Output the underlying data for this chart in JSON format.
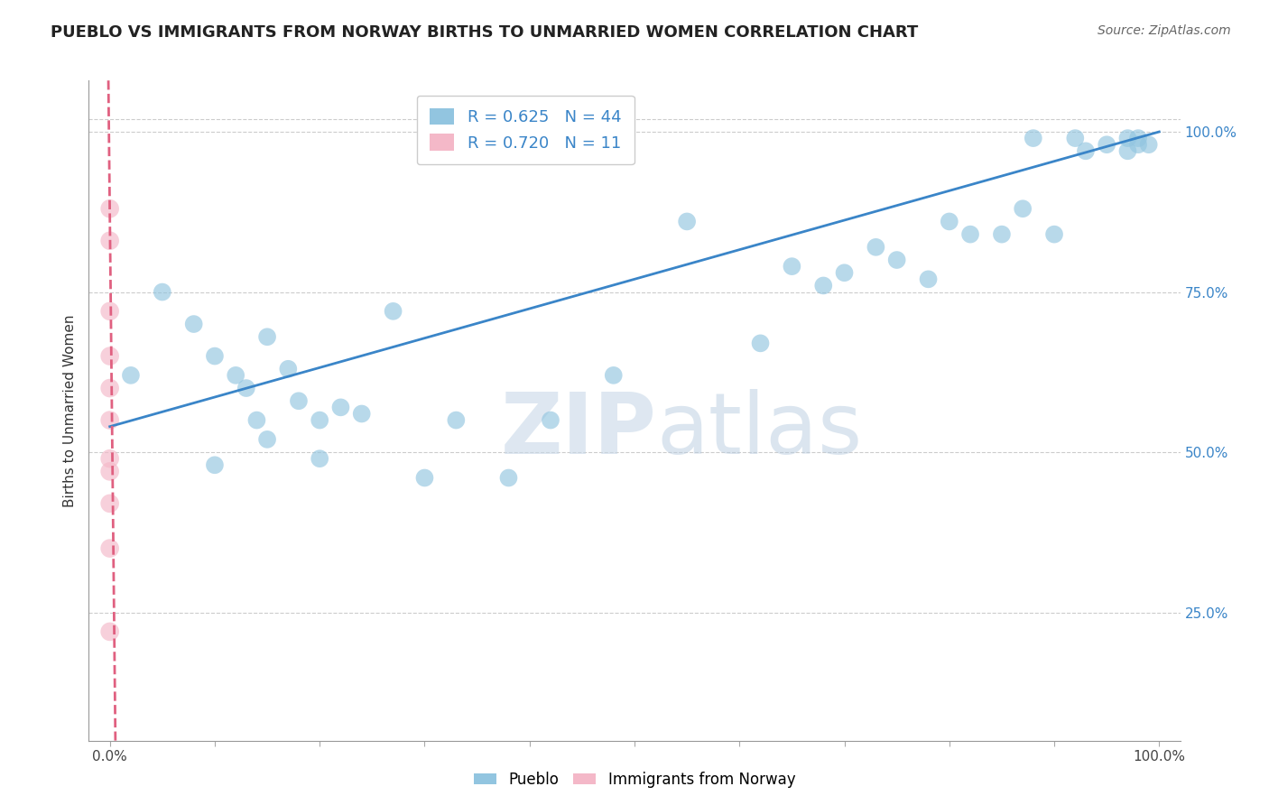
{
  "title": "PUEBLO VS IMMIGRANTS FROM NORWAY BIRTHS TO UNMARRIED WOMEN CORRELATION CHART",
  "source": "Source: ZipAtlas.com",
  "ylabel": "Births to Unmarried Women",
  "xlim": [
    -0.02,
    1.02
  ],
  "ylim": [
    0.05,
    1.08
  ],
  "yticks": [
    0.25,
    0.5,
    0.75,
    1.0
  ],
  "ytick_labels": [
    "25.0%",
    "50.0%",
    "75.0%",
    "100.0%"
  ],
  "pueblo_R": 0.625,
  "pueblo_N": 44,
  "norway_R": 0.72,
  "norway_N": 11,
  "pueblo_color": "#92c5e0",
  "norway_color": "#f4b8c8",
  "trendline_blue": "#3a85c8",
  "trendline_pink": "#e06080",
  "legend_label_blue": "Pueblo",
  "legend_label_pink": "Immigrants from Norway",
  "watermark_zip": "ZIP",
  "watermark_atlas": "atlas",
  "blue_x": [
    0.02,
    0.05,
    0.08,
    0.1,
    0.12,
    0.13,
    0.14,
    0.15,
    0.17,
    0.18,
    0.2,
    0.22,
    0.24,
    0.27,
    0.33,
    0.38,
    0.42,
    0.48,
    0.55,
    0.62,
    0.65,
    0.68,
    0.7,
    0.73,
    0.75,
    0.78,
    0.8,
    0.82,
    0.85,
    0.87,
    0.88,
    0.9,
    0.92,
    0.93,
    0.95,
    0.97,
    0.97,
    0.98,
    0.98,
    0.99,
    0.1,
    0.15,
    0.2,
    0.3
  ],
  "blue_y": [
    0.62,
    0.75,
    0.7,
    0.65,
    0.62,
    0.6,
    0.55,
    0.68,
    0.63,
    0.58,
    0.55,
    0.57,
    0.56,
    0.72,
    0.55,
    0.46,
    0.55,
    0.62,
    0.86,
    0.67,
    0.79,
    0.76,
    0.78,
    0.82,
    0.8,
    0.77,
    0.86,
    0.84,
    0.84,
    0.88,
    0.99,
    0.84,
    0.99,
    0.97,
    0.98,
    0.97,
    0.99,
    0.99,
    0.98,
    0.98,
    0.48,
    0.52,
    0.49,
    0.46
  ],
  "pink_x": [
    0.0,
    0.0,
    0.0,
    0.0,
    0.0,
    0.0,
    0.0,
    0.0,
    0.0,
    0.0,
    0.0
  ],
  "pink_y": [
    0.88,
    0.83,
    0.72,
    0.65,
    0.6,
    0.55,
    0.49,
    0.47,
    0.42,
    0.35,
    0.22
  ],
  "blue_trend_x0": 0.0,
  "blue_trend_y0": 0.54,
  "blue_trend_x1": 1.0,
  "blue_trend_y1": 1.0,
  "pink_trend_x0": 0.0,
  "pink_trend_y0": 0.87,
  "pink_trend_x1": 0.005,
  "pink_trend_y1": 0.1
}
